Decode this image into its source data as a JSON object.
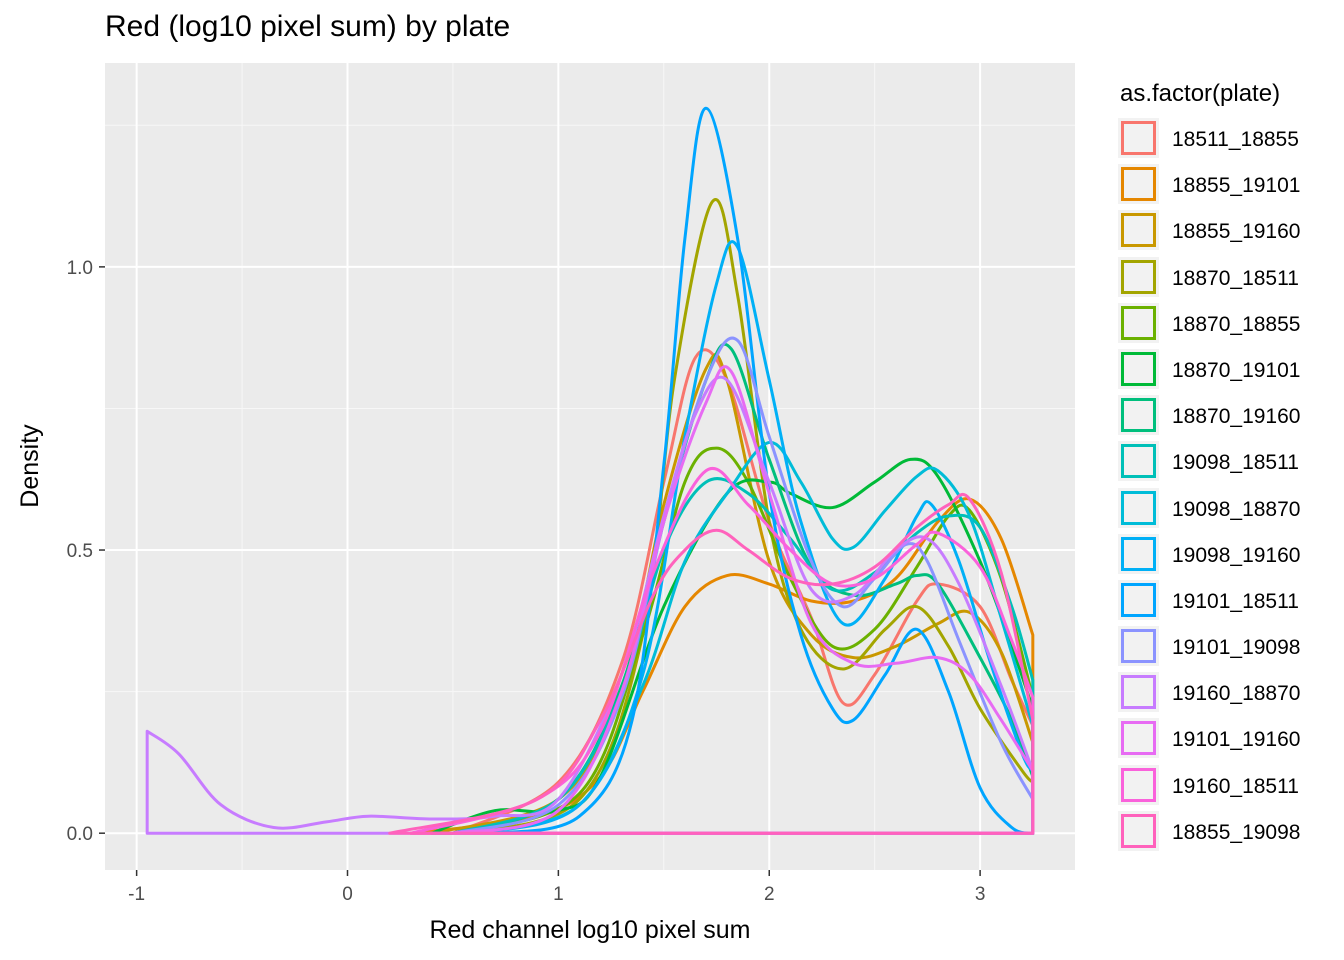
{
  "chart_data": {
    "type": "density",
    "title": "Red (log10 pixel sum) by plate",
    "xlabel": "Red channel log10 pixel sum",
    "ylabel": "Density",
    "xlim": [
      -1.15,
      3.45
    ],
    "ylim": [
      -0.065,
      1.36
    ],
    "x_ticks": [
      -1,
      0,
      1,
      2,
      3
    ],
    "x_tick_labels": [
      "-1",
      "0",
      "1",
      "2",
      "3"
    ],
    "y_ticks": [
      0.0,
      0.5,
      1.0
    ],
    "y_tick_labels": [
      "0.0",
      "0.5",
      "1.0"
    ],
    "grid": true,
    "legend_title": "as.factor(plate)",
    "legend_position": "right",
    "series": [
      {
        "name": "18511_18855",
        "color": "#F8766D",
        "points": [
          [
            0.5,
            0
          ],
          [
            1.0,
            0.09
          ],
          [
            1.3,
            0.3
          ],
          [
            1.5,
            0.62
          ],
          [
            1.65,
            0.84
          ],
          [
            1.8,
            0.8
          ],
          [
            2.0,
            0.55
          ],
          [
            2.2,
            0.38
          ],
          [
            2.35,
            0.23
          ],
          [
            2.5,
            0.28
          ],
          [
            2.7,
            0.41
          ],
          [
            2.8,
            0.44
          ],
          [
            3.0,
            0.4
          ],
          [
            3.15,
            0.27
          ],
          [
            3.25,
            0.19
          ]
        ]
      },
      {
        "name": "18855_19101",
        "color": "#E58700",
        "points": [
          [
            0.3,
            0
          ],
          [
            0.9,
            0.03
          ],
          [
            1.2,
            0.1
          ],
          [
            1.4,
            0.25
          ],
          [
            1.6,
            0.4
          ],
          [
            1.8,
            0.455
          ],
          [
            2.0,
            0.44
          ],
          [
            2.2,
            0.41
          ],
          [
            2.4,
            0.41
          ],
          [
            2.6,
            0.45
          ],
          [
            2.8,
            0.55
          ],
          [
            2.95,
            0.59
          ],
          [
            3.1,
            0.52
          ],
          [
            3.25,
            0.35
          ]
        ]
      },
      {
        "name": "18855_19160",
        "color": "#C99800",
        "points": [
          [
            0.4,
            0
          ],
          [
            1.0,
            0.06
          ],
          [
            1.3,
            0.25
          ],
          [
            1.5,
            0.58
          ],
          [
            1.7,
            0.82
          ],
          [
            1.8,
            0.8
          ],
          [
            2.0,
            0.48
          ],
          [
            2.2,
            0.35
          ],
          [
            2.4,
            0.31
          ],
          [
            2.6,
            0.33
          ],
          [
            2.8,
            0.37
          ],
          [
            2.95,
            0.39
          ],
          [
            3.1,
            0.32
          ],
          [
            3.25,
            0.16
          ]
        ]
      },
      {
        "name": "18870_18511",
        "color": "#A3A500",
        "points": [
          [
            0.5,
            0
          ],
          [
            1.1,
            0.06
          ],
          [
            1.4,
            0.35
          ],
          [
            1.55,
            0.8
          ],
          [
            1.73,
            1.115
          ],
          [
            1.85,
            0.95
          ],
          [
            2.0,
            0.55
          ],
          [
            2.15,
            0.36
          ],
          [
            2.35,
            0.29
          ],
          [
            2.55,
            0.36
          ],
          [
            2.7,
            0.4
          ],
          [
            2.85,
            0.33
          ],
          [
            3.0,
            0.22
          ],
          [
            3.2,
            0.11
          ],
          [
            3.25,
            0.09
          ]
        ]
      },
      {
        "name": "18870_18855",
        "color": "#6BB100",
        "points": [
          [
            0.5,
            0
          ],
          [
            1.1,
            0.07
          ],
          [
            1.4,
            0.35
          ],
          [
            1.6,
            0.62
          ],
          [
            1.75,
            0.68
          ],
          [
            1.9,
            0.62
          ],
          [
            2.1,
            0.45
          ],
          [
            2.3,
            0.33
          ],
          [
            2.5,
            0.36
          ],
          [
            2.7,
            0.47
          ],
          [
            2.85,
            0.56
          ],
          [
            2.95,
            0.57
          ],
          [
            3.1,
            0.45
          ],
          [
            3.25,
            0.24
          ]
        ]
      },
      {
        "name": "18870_19101",
        "color": "#00BA38",
        "points": [
          [
            0.4,
            0
          ],
          [
            0.7,
            0.04
          ],
          [
            1.0,
            0.04
          ],
          [
            1.2,
            0.1
          ],
          [
            1.5,
            0.4
          ],
          [
            1.8,
            0.6
          ],
          [
            2.0,
            0.62
          ],
          [
            2.1,
            0.6
          ],
          [
            2.3,
            0.575
          ],
          [
            2.5,
            0.62
          ],
          [
            2.67,
            0.66
          ],
          [
            2.8,
            0.63
          ],
          [
            3.0,
            0.48
          ],
          [
            3.15,
            0.33
          ],
          [
            3.25,
            0.22
          ]
        ]
      },
      {
        "name": "18870_19160",
        "color": "#00BF7D",
        "points": [
          [
            0.5,
            0
          ],
          [
            1.0,
            0.06
          ],
          [
            1.3,
            0.26
          ],
          [
            1.5,
            0.55
          ],
          [
            1.7,
            0.8
          ],
          [
            1.82,
            0.855
          ],
          [
            2.0,
            0.66
          ],
          [
            2.2,
            0.47
          ],
          [
            2.4,
            0.42
          ],
          [
            2.6,
            0.44
          ],
          [
            2.7,
            0.455
          ],
          [
            2.8,
            0.44
          ],
          [
            3.0,
            0.31
          ],
          [
            3.15,
            0.2
          ],
          [
            3.25,
            0.1
          ]
        ]
      },
      {
        "name": "19098_18511",
        "color": "#00C0B8",
        "points": [
          [
            0.5,
            0
          ],
          [
            1.0,
            0.06
          ],
          [
            1.3,
            0.25
          ],
          [
            1.5,
            0.5
          ],
          [
            1.7,
            0.62
          ],
          [
            1.9,
            0.6
          ],
          [
            2.1,
            0.52
          ],
          [
            2.3,
            0.43
          ],
          [
            2.5,
            0.46
          ],
          [
            2.7,
            0.53
          ],
          [
            2.85,
            0.56
          ],
          [
            3.0,
            0.54
          ],
          [
            3.15,
            0.4
          ],
          [
            3.25,
            0.27
          ]
        ]
      },
      {
        "name": "19098_18870",
        "color": "#00BCD8",
        "points": [
          [
            0.6,
            0
          ],
          [
            1.1,
            0.05
          ],
          [
            1.4,
            0.26
          ],
          [
            1.6,
            0.48
          ],
          [
            1.8,
            0.6
          ],
          [
            2.0,
            0.69
          ],
          [
            2.15,
            0.62
          ],
          [
            2.3,
            0.52
          ],
          [
            2.4,
            0.505
          ],
          [
            2.55,
            0.57
          ],
          [
            2.7,
            0.63
          ],
          [
            2.8,
            0.64
          ],
          [
            2.95,
            0.56
          ],
          [
            3.1,
            0.38
          ],
          [
            3.25,
            0.19
          ]
        ]
      },
      {
        "name": "19098_19160",
        "color": "#00B0F6",
        "points": [
          [
            0.6,
            0
          ],
          [
            1.1,
            0.05
          ],
          [
            1.4,
            0.28
          ],
          [
            1.6,
            0.7
          ],
          [
            1.75,
            0.97
          ],
          [
            1.85,
            1.035
          ],
          [
            2.0,
            0.8
          ],
          [
            2.15,
            0.55
          ],
          [
            2.35,
            0.37
          ],
          [
            2.55,
            0.45
          ],
          [
            2.7,
            0.56
          ],
          [
            2.77,
            0.58
          ],
          [
            2.9,
            0.48
          ],
          [
            3.05,
            0.3
          ],
          [
            3.2,
            0.14
          ],
          [
            3.25,
            0.11
          ]
        ]
      },
      {
        "name": "19101_18511",
        "color": "#00A5FF",
        "points": [
          [
            0.7,
            0
          ],
          [
            1.1,
            0.03
          ],
          [
            1.35,
            0.2
          ],
          [
            1.5,
            0.65
          ],
          [
            1.6,
            1.05
          ],
          [
            1.7,
            1.28
          ],
          [
            1.85,
            1.05
          ],
          [
            2.0,
            0.6
          ],
          [
            2.15,
            0.35
          ],
          [
            2.3,
            0.22
          ],
          [
            2.4,
            0.2
          ],
          [
            2.55,
            0.28
          ],
          [
            2.7,
            0.36
          ],
          [
            2.85,
            0.25
          ],
          [
            3.0,
            0.08
          ],
          [
            3.15,
            0.01
          ],
          [
            3.25,
            0.0
          ]
        ]
      },
      {
        "name": "19101_19098",
        "color": "#8B93FF",
        "points": [
          [
            0.5,
            0
          ],
          [
            1.0,
            0.05
          ],
          [
            1.3,
            0.24
          ],
          [
            1.5,
            0.55
          ],
          [
            1.7,
            0.8
          ],
          [
            1.85,
            0.87
          ],
          [
            2.0,
            0.7
          ],
          [
            2.2,
            0.48
          ],
          [
            2.35,
            0.4
          ],
          [
            2.5,
            0.45
          ],
          [
            2.65,
            0.51
          ],
          [
            2.75,
            0.48
          ],
          [
            2.9,
            0.34
          ],
          [
            3.1,
            0.16
          ],
          [
            3.25,
            0.06
          ]
        ]
      },
      {
        "name": "19160_18870",
        "color": "#C77CFF",
        "points": [
          [
            -0.95,
            0.18
          ],
          [
            -0.8,
            0.14
          ],
          [
            -0.6,
            0.05
          ],
          [
            -0.35,
            0.01
          ],
          [
            -0.1,
            0.02
          ],
          [
            0.1,
            0.03
          ],
          [
            0.4,
            0.025
          ],
          [
            0.7,
            0.03
          ],
          [
            1.0,
            0.06
          ],
          [
            1.3,
            0.28
          ],
          [
            1.5,
            0.56
          ],
          [
            1.65,
            0.74
          ],
          [
            1.8,
            0.8
          ],
          [
            2.0,
            0.62
          ],
          [
            2.2,
            0.43
          ],
          [
            2.4,
            0.42
          ],
          [
            2.6,
            0.5
          ],
          [
            2.75,
            0.52
          ],
          [
            2.9,
            0.44
          ],
          [
            3.1,
            0.26
          ],
          [
            3.25,
            0.11
          ]
        ]
      },
      {
        "name": "19101_19160",
        "color": "#E76BF3",
        "points": [
          [
            0.5,
            0
          ],
          [
            1.0,
            0.04
          ],
          [
            1.3,
            0.25
          ],
          [
            1.5,
            0.55
          ],
          [
            1.7,
            0.76
          ],
          [
            1.82,
            0.815
          ],
          [
            2.0,
            0.6
          ],
          [
            2.2,
            0.37
          ],
          [
            2.4,
            0.3
          ],
          [
            2.6,
            0.3
          ],
          [
            2.8,
            0.31
          ],
          [
            2.95,
            0.28
          ],
          [
            3.1,
            0.2
          ],
          [
            3.25,
            0.11
          ]
        ]
      },
      {
        "name": "19160_18511",
        "color": "#FA62DB",
        "points": [
          [
            0.3,
            0
          ],
          [
            0.9,
            0.06
          ],
          [
            1.2,
            0.18
          ],
          [
            1.45,
            0.46
          ],
          [
            1.7,
            0.64
          ],
          [
            1.9,
            0.58
          ],
          [
            2.1,
            0.5
          ],
          [
            2.3,
            0.44
          ],
          [
            2.5,
            0.45
          ],
          [
            2.7,
            0.51
          ],
          [
            2.8,
            0.53
          ],
          [
            3.0,
            0.47
          ],
          [
            3.15,
            0.34
          ],
          [
            3.25,
            0.24
          ]
        ]
      },
      {
        "name": "18855_19098",
        "color": "#FF62BC",
        "points": [
          [
            0.2,
            0
          ],
          [
            0.9,
            0.06
          ],
          [
            1.2,
            0.2
          ],
          [
            1.45,
            0.42
          ],
          [
            1.6,
            0.5
          ],
          [
            1.75,
            0.535
          ],
          [
            1.9,
            0.5
          ],
          [
            2.1,
            0.45
          ],
          [
            2.3,
            0.44
          ],
          [
            2.5,
            0.47
          ],
          [
            2.7,
            0.54
          ],
          [
            2.85,
            0.58
          ],
          [
            2.95,
            0.59
          ],
          [
            3.1,
            0.46
          ],
          [
            3.25,
            0.2
          ]
        ]
      }
    ]
  }
}
